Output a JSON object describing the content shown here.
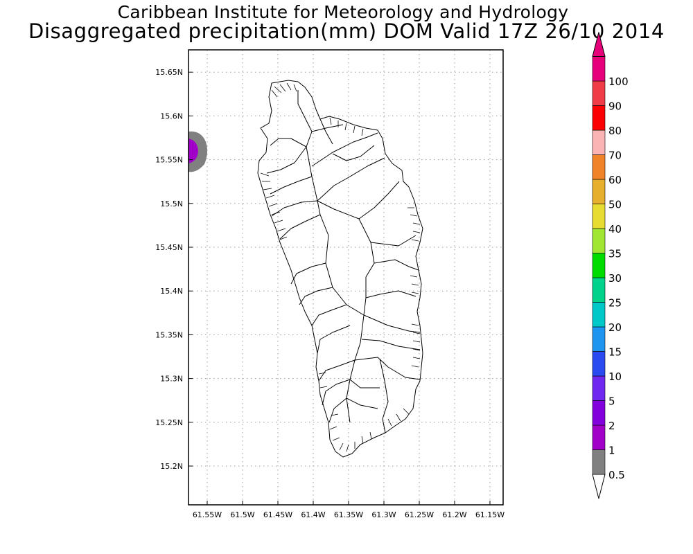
{
  "header": {
    "institute": "Caribbean Institute for Meteorology and Hydrology",
    "product": "Disaggregated precipitation(mm) DOM Valid 17Z 26/10 2014"
  },
  "map": {
    "lat_ticks": [
      "15.2N",
      "15.25N",
      "15.3N",
      "15.35N",
      "15.4N",
      "15.45N",
      "15.5N",
      "15.55N",
      "15.6N",
      "15.65N"
    ],
    "lon_ticks": [
      "61.55W",
      "61.5W",
      "61.45W",
      "61.4W",
      "61.35W",
      "61.3W",
      "61.25W",
      "61.2W",
      "61.15W"
    ],
    "grid": true,
    "grid_style": "dotted",
    "precip_cells": [
      {
        "location": "west edge near 15.56N 61.57W",
        "band": "0.5-1",
        "color": "#808080"
      },
      {
        "location": "west edge near 15.56N 61.57W",
        "band": "1-2",
        "color": "#a000c8"
      }
    ]
  },
  "colorbar": {
    "levels": [
      "0.5",
      "1",
      "2",
      "5",
      "10",
      "15",
      "20",
      "25",
      "30",
      "35",
      "40",
      "50",
      "60",
      "70",
      "80",
      "90",
      "100"
    ],
    "colors": [
      "#808080",
      "#a000c8",
      "#8200dc",
      "#6e28f0",
      "#2a4bf0",
      "#1e96f0",
      "#00c8c8",
      "#00d28c",
      "#00dc00",
      "#a0e632",
      "#e6dc32",
      "#e6af2d",
      "#f08228",
      "#fab4b4",
      "#fa0000",
      "#f03c46",
      "#e6007a"
    ],
    "under_color": "#ffffff",
    "over_color": "#e6007a"
  }
}
